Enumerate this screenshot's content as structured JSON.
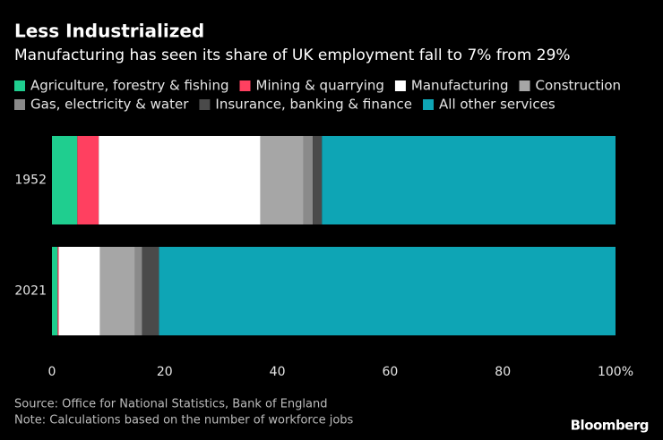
{
  "chart_data": {
    "type": "stacked-bar-horizontal",
    "title": "Less Industrialized",
    "subtitle": "Manufacturing has seen its share of UK employment fall to 7% from 29%",
    "categories": [
      "1952",
      "2021"
    ],
    "series": [
      {
        "name": "Agriculture, forestry & fishing",
        "color": "#1fce8f",
        "values": [
          4.5,
          1.0
        ]
      },
      {
        "name": "Mining & quarrying",
        "color": "#ff4060",
        "values": [
          3.8,
          0.2
        ]
      },
      {
        "name": "Manufacturing",
        "color": "#ffffff",
        "values": [
          28.7,
          7.3
        ]
      },
      {
        "name": "Construction",
        "color": "#a6a6a6",
        "values": [
          7.6,
          6.2
        ]
      },
      {
        "name": "Gas, electricity & water",
        "color": "#8a8a8a",
        "values": [
          1.7,
          1.3
        ]
      },
      {
        "name": "Insurance, banking & finance",
        "color": "#4a4a4a",
        "values": [
          1.6,
          3.0
        ]
      },
      {
        "name": "All other services",
        "color": "#0ea5b5",
        "values": [
          52.1,
          81.0
        ]
      }
    ],
    "xlim": [
      0,
      100
    ],
    "xticks": [
      0,
      20,
      40,
      60,
      80,
      {
        "value": 100,
        "label": "100%"
      }
    ],
    "source": "Source: Office for National Statistics, Bank of England",
    "note": "Note: Calculations based on the number of workforce jobs",
    "brand": "Bloomberg"
  }
}
